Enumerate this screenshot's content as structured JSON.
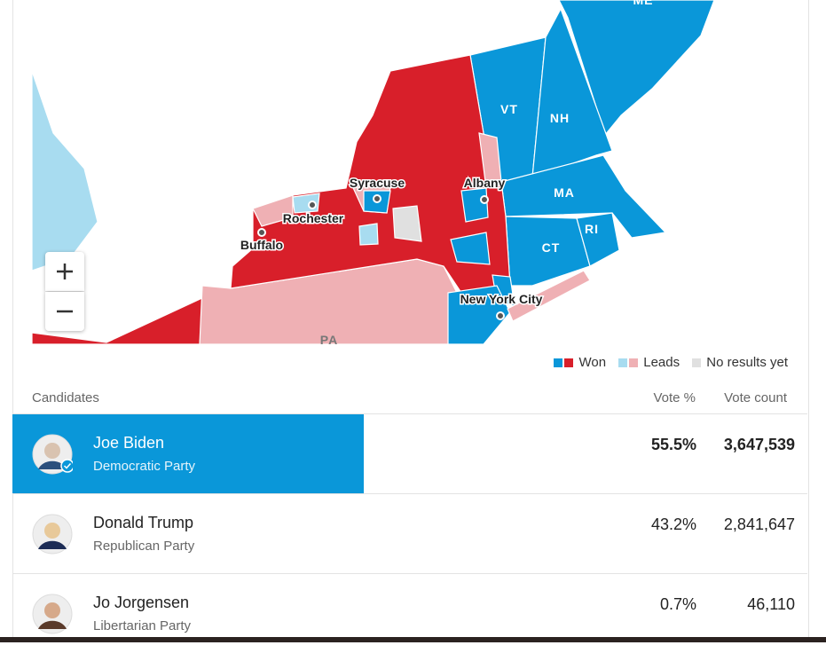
{
  "map": {
    "states": [
      "ME",
      "VT",
      "NH",
      "MA",
      "CT",
      "RI",
      "PA"
    ],
    "cities": [
      "Syracuse",
      "Albany",
      "Rochester",
      "Buffalo",
      "New York City"
    ]
  },
  "legend": [
    "Won",
    "Leads",
    "No results yet"
  ],
  "table": {
    "headers": [
      "Candidates",
      "Vote %",
      "Vote count"
    ],
    "rows": [
      {
        "name": "Joe Biden",
        "party": "Democratic Party",
        "pct": "55.5%",
        "votes": "3,647,539"
      },
      {
        "name": "Donald Trump",
        "party": "Republican Party",
        "pct": "43.2%",
        "votes": "2,841,647"
      },
      {
        "name": "Jo Jorgensen",
        "party": "Libertarian Party",
        "pct": "0.7%",
        "votes": "46,110"
      }
    ]
  }
}
